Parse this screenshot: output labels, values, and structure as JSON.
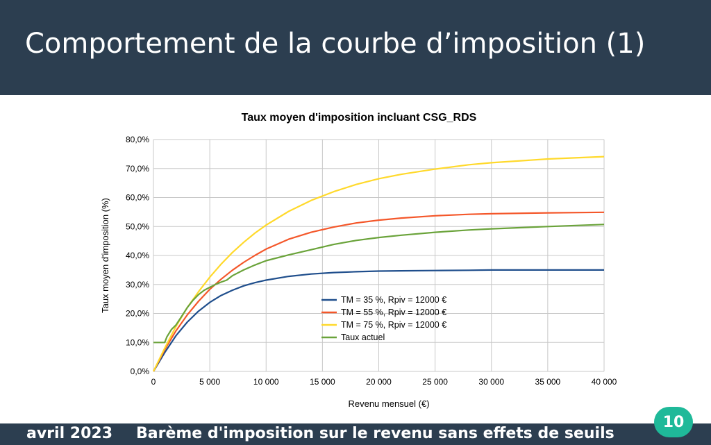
{
  "slide": {
    "title": "Comportement de la courbe d’imposition (1)",
    "footer_date": "avril 2023",
    "footer_subject": "Barème d'imposition sur le revenu sans effets de seuils",
    "page_number": "10",
    "colors": {
      "header_bg": "#2c3e50",
      "badge_bg": "#1fb999"
    }
  },
  "chart_data": {
    "type": "line",
    "title": "Taux moyen d'imposition incluant CSG_RDS",
    "xlabel": "Revenu mensuel (€)",
    "ylabel": "Taux moyen d'imposition (%)",
    "xlim": [
      0,
      40000
    ],
    "ylim": [
      0,
      80
    ],
    "xticks": [
      0,
      5000,
      10000,
      15000,
      20000,
      25000,
      30000,
      35000,
      40000
    ],
    "xtick_labels": [
      "0",
      "5 000",
      "10 000",
      "15 000",
      "20 000",
      "25 000",
      "30 000",
      "35 000",
      "40 000"
    ],
    "yticks": [
      0,
      10,
      20,
      30,
      40,
      50,
      60,
      70,
      80
    ],
    "ytick_labels": [
      "0,0%",
      "10,0%",
      "20,0%",
      "30,0%",
      "40,0%",
      "50,0%",
      "60,0%",
      "70,0%",
      "80,0%"
    ],
    "grid": true,
    "legend_position": "center",
    "series": [
      {
        "name": "TM = 35 %, Rpiv = 12000 €",
        "color": "#1f4e8c",
        "x": [
          0,
          1000,
          2000,
          3000,
          4000,
          5000,
          6000,
          7000,
          8000,
          9000,
          10000,
          12000,
          14000,
          16000,
          18000,
          20000,
          22000,
          25000,
          28000,
          30000,
          35000,
          40000
        ],
        "y": [
          0,
          6.5,
          12.3,
          17.0,
          20.8,
          23.8,
          26.2,
          28.0,
          29.5,
          30.6,
          31.5,
          32.8,
          33.6,
          34.1,
          34.4,
          34.6,
          34.7,
          34.8,
          34.9,
          35.0,
          35.0,
          35.0
        ]
      },
      {
        "name": "TM = 55 %, Rpiv = 12000 €",
        "color": "#f4572a",
        "x": [
          0,
          1000,
          2000,
          3000,
          4000,
          5000,
          6000,
          7000,
          8000,
          9000,
          10000,
          12000,
          14000,
          16000,
          18000,
          20000,
          22000,
          25000,
          28000,
          30000,
          35000,
          40000
        ],
        "y": [
          0,
          7.5,
          14.0,
          19.5,
          24.2,
          28.3,
          31.8,
          34.9,
          37.6,
          40.0,
          42.2,
          45.6,
          48.0,
          49.8,
          51.2,
          52.2,
          52.9,
          53.7,
          54.2,
          54.4,
          54.7,
          54.9
        ]
      },
      {
        "name": "TM = 75 %, Rpiv = 12000 €",
        "color": "#ffd92b",
        "x": [
          0,
          1000,
          2000,
          3000,
          4000,
          5000,
          6000,
          7000,
          8000,
          9000,
          10000,
          12000,
          14000,
          16000,
          18000,
          20000,
          22000,
          25000,
          28000,
          30000,
          35000,
          40000
        ],
        "y": [
          0,
          8.0,
          15.5,
          22.0,
          27.5,
          32.5,
          37.0,
          41.0,
          44.5,
          47.7,
          50.5,
          55.2,
          59.0,
          62.0,
          64.5,
          66.5,
          68.0,
          69.8,
          71.3,
          72.0,
          73.3,
          74.1
        ]
      },
      {
        "name": "Taux actuel",
        "color": "#6aa33a",
        "x": [
          0,
          1000,
          1200,
          1600,
          2000,
          2500,
          3000,
          3500,
          4000,
          4500,
          5000,
          5500,
          6000,
          6500,
          7000,
          8000,
          9000,
          10000,
          12000,
          14000,
          16000,
          18000,
          20000,
          22000,
          25000,
          28000,
          30000,
          35000,
          40000
        ],
        "y": [
          10,
          10,
          12.0,
          14.5,
          16.0,
          19.0,
          22.0,
          24.5,
          26.5,
          28.0,
          29.0,
          30.0,
          30.8,
          31.5,
          33.0,
          35.0,
          36.7,
          38.2,
          40.2,
          42.0,
          43.8,
          45.2,
          46.2,
          47.0,
          48.0,
          48.8,
          49.2,
          50.0,
          50.7
        ]
      }
    ]
  }
}
